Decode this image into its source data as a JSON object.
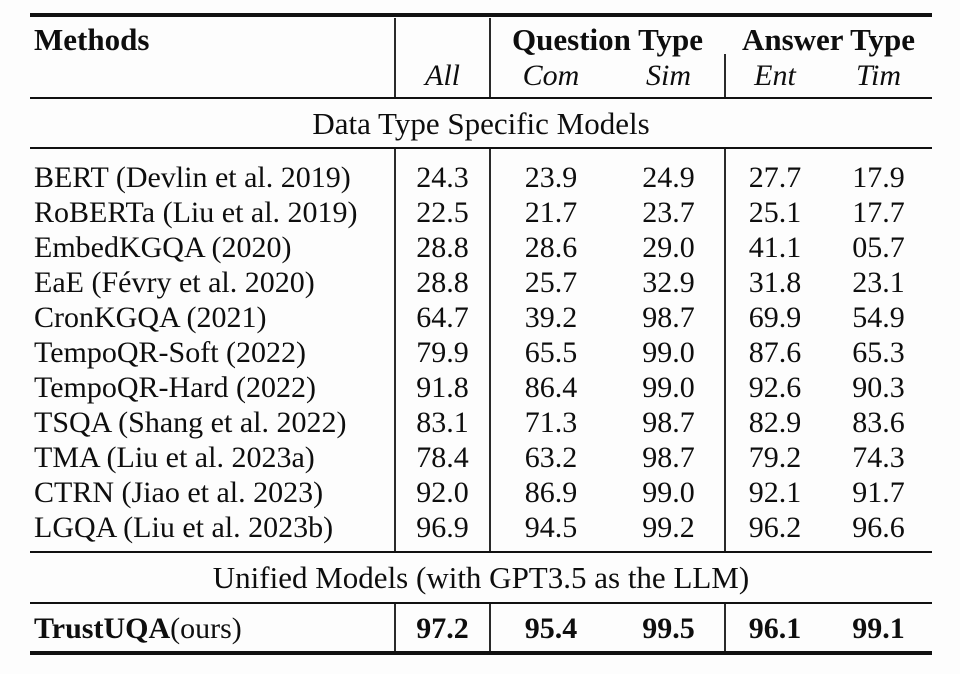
{
  "table": {
    "header": {
      "methods_label": "Methods",
      "all_label": "All",
      "question_type_label": "Question Type",
      "answer_type_label": "Answer Type",
      "com_label": "Com",
      "sim_label": "Sim",
      "ent_label": "Ent",
      "tim_label": "Tim"
    },
    "section_titles": {
      "specific": "Data Type Specific Models",
      "unified": "Unified Models (with GPT3.5 as the LLM)"
    },
    "rows": [
      [
        "BERT (Devlin et al. 2019)",
        "24.3",
        "23.9",
        "24.9",
        "27.7",
        "17.9"
      ],
      [
        "RoBERTa (Liu et al. 2019)",
        "22.5",
        "21.7",
        "23.7",
        "25.1",
        "17.7"
      ],
      [
        "EmbedKGQA (2020)",
        "28.8",
        "28.6",
        "29.0",
        "41.1",
        "05.7"
      ],
      [
        "EaE (Févry et al. 2020)",
        "28.8",
        "25.7",
        "32.9",
        "31.8",
        "23.1"
      ],
      [
        "CronKGQA (2021)",
        "64.7",
        "39.2",
        "98.7",
        "69.9",
        "54.9"
      ],
      [
        "TempoQR-Soft (2022)",
        "79.9",
        "65.5",
        "99.0",
        "87.6",
        "65.3"
      ],
      [
        "TempoQR-Hard (2022)",
        "91.8",
        "86.4",
        "99.0",
        "92.6",
        "90.3"
      ],
      [
        "TSQA (Shang et al. 2022)",
        "83.1",
        "71.3",
        "98.7",
        "82.9",
        "83.6"
      ],
      [
        "TMA (Liu et al. 2023a)",
        "78.4",
        "63.2",
        "98.7",
        "79.2",
        "74.3"
      ],
      [
        "CTRN (Jiao et al. 2023)",
        "92.0",
        "86.9",
        "99.0",
        "92.1",
        "91.7"
      ],
      [
        "LGQA (Liu et al. 2023b)",
        "96.9",
        "94.5",
        "99.2",
        "96.2",
        "96.6"
      ]
    ],
    "final_row": {
      "method_bold": "TrustUQA",
      "method_suffix": "(ours)",
      "values": [
        "97.2",
        "95.4",
        "99.5",
        "96.1",
        "99.1"
      ]
    }
  },
  "chart_data": {
    "type": "table",
    "title": "",
    "columns": [
      "Methods",
      "All",
      "Question Type: Com",
      "Question Type: Sim",
      "Answer Type: Ent",
      "Answer Type: Tim"
    ],
    "sections": [
      {
        "section": "Data Type Specific Models",
        "rows": [
          {
            "method": "BERT (Devlin et al. 2019)",
            "all": 24.3,
            "com": 23.9,
            "sim": 24.9,
            "ent": 27.7,
            "tim": 17.9
          },
          {
            "method": "RoBERTa (Liu et al. 2019)",
            "all": 22.5,
            "com": 21.7,
            "sim": 23.7,
            "ent": 25.1,
            "tim": 17.7
          },
          {
            "method": "EmbedKGQA (2020)",
            "all": 28.8,
            "com": 28.6,
            "sim": 29.0,
            "ent": 41.1,
            "tim": 5.7
          },
          {
            "method": "EaE (Févry et al. 2020)",
            "all": 28.8,
            "com": 25.7,
            "sim": 32.9,
            "ent": 31.8,
            "tim": 23.1
          },
          {
            "method": "CronKGQA (2021)",
            "all": 64.7,
            "com": 39.2,
            "sim": 98.7,
            "ent": 69.9,
            "tim": 54.9
          },
          {
            "method": "TempoQR-Soft (2022)",
            "all": 79.9,
            "com": 65.5,
            "sim": 99.0,
            "ent": 87.6,
            "tim": 65.3
          },
          {
            "method": "TempoQR-Hard (2022)",
            "all": 91.8,
            "com": 86.4,
            "sim": 99.0,
            "ent": 92.6,
            "tim": 90.3
          },
          {
            "method": "TSQA (Shang et al. 2022)",
            "all": 83.1,
            "com": 71.3,
            "sim": 98.7,
            "ent": 82.9,
            "tim": 83.6
          },
          {
            "method": "TMA (Liu et al. 2023a)",
            "all": 78.4,
            "com": 63.2,
            "sim": 98.7,
            "ent": 79.2,
            "tim": 74.3
          },
          {
            "method": "CTRN (Jiao et al. 2023)",
            "all": 92.0,
            "com": 86.9,
            "sim": 99.0,
            "ent": 92.1,
            "tim": 91.7
          },
          {
            "method": "LGQA (Liu et al. 2023b)",
            "all": 96.9,
            "com": 94.5,
            "sim": 99.2,
            "ent": 96.2,
            "tim": 96.6
          }
        ]
      },
      {
        "section": "Unified Models (with GPT3.5 as the LLM)",
        "rows": [
          {
            "method": "TrustUQA(ours)",
            "all": 97.2,
            "com": 95.4,
            "sim": 99.5,
            "ent": 96.1,
            "tim": 99.1,
            "bold": true
          }
        ]
      }
    ]
  }
}
